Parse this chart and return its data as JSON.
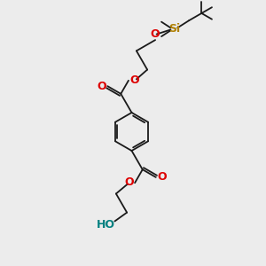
{
  "bg_color": "#ececec",
  "black": "#1a1a1a",
  "red": "#dd0000",
  "gold": "#b08000",
  "teal": "#008080",
  "lw": 1.3,
  "xlim": [
    0,
    10
  ],
  "ylim": [
    0,
    10
  ]
}
